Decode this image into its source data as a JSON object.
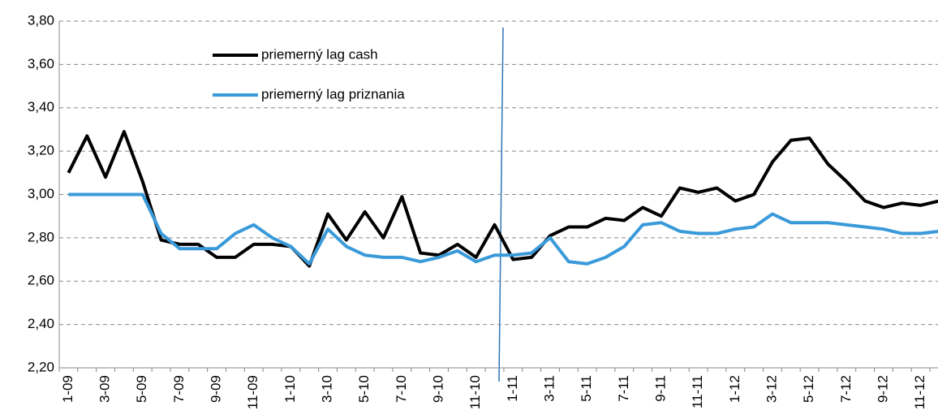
{
  "chart_data": {
    "type": "line",
    "categories": [
      "1-09",
      null,
      "3-09",
      null,
      "5-09",
      null,
      "7-09",
      null,
      "9-09",
      null,
      "11-09",
      null,
      "1-10",
      null,
      "3-10",
      null,
      "5-10",
      null,
      "7-10",
      null,
      "9-10",
      null,
      "11-10",
      null,
      "1-11",
      null,
      "3-11",
      null,
      "5-11",
      null,
      "7-11",
      null,
      "9-11",
      null,
      "11-11",
      null,
      "1-12",
      null,
      "3-12",
      null,
      "5-12",
      null,
      "7-12",
      null,
      "9-12",
      null,
      "11-12",
      null
    ],
    "series": [
      {
        "name": "priemerný lag cash",
        "color": "#000000",
        "values": [
          3.1,
          3.27,
          3.08,
          3.29,
          3.06,
          2.79,
          2.77,
          2.77,
          2.71,
          2.71,
          2.77,
          2.77,
          2.76,
          2.67,
          2.91,
          2.79,
          2.92,
          2.8,
          2.99,
          2.73,
          2.72,
          2.77,
          2.71,
          2.86,
          2.7,
          2.71,
          2.81,
          2.85,
          2.85,
          2.89,
          2.88,
          2.94,
          2.9,
          3.03,
          3.01,
          3.03,
          2.97,
          3.0,
          3.15,
          3.25,
          3.26,
          3.14,
          3.06,
          2.97,
          2.94,
          2.96,
          2.95,
          2.97
        ]
      },
      {
        "name": "priemerný lag priznania",
        "color": "#3a9ad9",
        "values": [
          3.0,
          3.0,
          3.0,
          3.0,
          3.0,
          2.82,
          2.75,
          2.75,
          2.75,
          2.82,
          2.86,
          2.8,
          2.76,
          2.68,
          2.84,
          2.76,
          2.72,
          2.71,
          2.71,
          2.69,
          2.71,
          2.74,
          2.69,
          2.72,
          2.72,
          2.73,
          2.8,
          2.69,
          2.68,
          2.71,
          2.76,
          2.86,
          2.87,
          2.83,
          2.82,
          2.82,
          2.84,
          2.85,
          2.91,
          2.87,
          2.87,
          2.87,
          2.86,
          2.85,
          2.84,
          2.82,
          2.82,
          2.83
        ]
      }
    ],
    "ylim": [
      2.2,
      3.8
    ],
    "yticks": [
      {
        "value": 2.2,
        "label": "2,20"
      },
      {
        "value": 2.4,
        "label": "2,40"
      },
      {
        "value": 2.6,
        "label": "2,60"
      },
      {
        "value": 2.8,
        "label": "2,80"
      },
      {
        "value": 3.0,
        "label": "3,00"
      },
      {
        "value": 3.2,
        "label": "3,20"
      },
      {
        "value": 3.4,
        "label": "3,40"
      },
      {
        "value": 3.6,
        "label": "3,60"
      },
      {
        "value": 3.8,
        "label": "3,80"
      }
    ],
    "grid": true
  }
}
